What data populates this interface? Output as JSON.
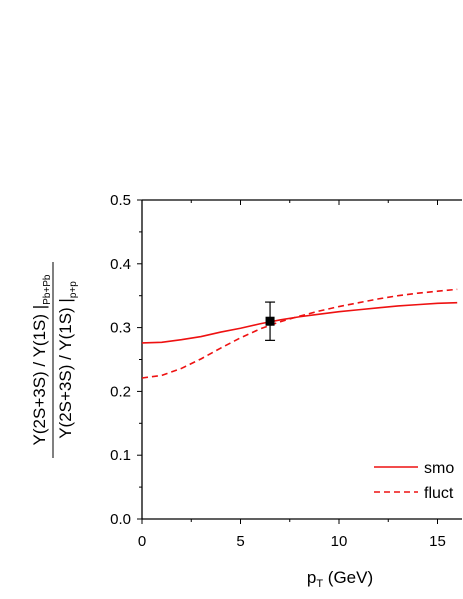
{
  "chart_data": {
    "type": "line",
    "xlabel_main": "p",
    "xlabel_sub": "T",
    "xlabel_unit": " (GeV)",
    "ylabel": {
      "numerator": "Υ(2S+3S) / Υ(1S) |",
      "numerator_sub": "Pb+Pb",
      "denominator": "Υ(2S+3S) / Υ(1S) |",
      "denominator_sub": "p+p"
    },
    "xlim": [
      0,
      16
    ],
    "ylim": [
      0,
      0.5
    ],
    "xticks": [
      0,
      5,
      10,
      15
    ],
    "xtick_labels": [
      "0",
      "5",
      "10",
      "15"
    ],
    "yticks": [
      0.0,
      0.1,
      0.2,
      0.3,
      0.4,
      0.5
    ],
    "ytick_labels": [
      "0.0",
      "0.1",
      "0.2",
      "0.3",
      "0.4",
      "0.5"
    ],
    "grid": false,
    "legend_position": "bottom-right",
    "series": [
      {
        "name": "smo",
        "style": "solid",
        "color": "#ee1111",
        "x": [
          0,
          1,
          2,
          3,
          4,
          5,
          6,
          7,
          8,
          9,
          10,
          11,
          12,
          13,
          14,
          15,
          16
        ],
        "y": [
          0.276,
          0.277,
          0.281,
          0.286,
          0.293,
          0.299,
          0.306,
          0.312,
          0.317,
          0.321,
          0.325,
          0.328,
          0.331,
          0.334,
          0.336,
          0.338,
          0.339
        ]
      },
      {
        "name": "fluct",
        "style": "dashed",
        "color": "#ee1111",
        "x": [
          0,
          1,
          2,
          3,
          4,
          5,
          6,
          7,
          8,
          9,
          10,
          11,
          12,
          13,
          14,
          15,
          16
        ],
        "y": [
          0.221,
          0.225,
          0.236,
          0.251,
          0.268,
          0.284,
          0.298,
          0.309,
          0.318,
          0.326,
          0.333,
          0.339,
          0.345,
          0.35,
          0.354,
          0.357,
          0.36
        ]
      }
    ],
    "data_point": {
      "x": 6.5,
      "y": 0.31,
      "err_low": 0.28,
      "err_high": 0.34,
      "color": "#000000"
    }
  }
}
